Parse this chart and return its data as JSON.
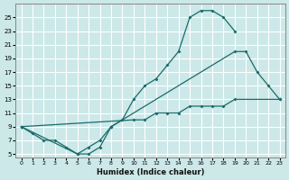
{
  "xlabel": "Humidex (Indice chaleur)",
  "bg_color": "#cce8e8",
  "line_color": "#1a6b6b",
  "grid_color": "#ffffff",
  "xlim": [
    -0.5,
    23.5
  ],
  "ylim": [
    4.5,
    27
  ],
  "xticks": [
    0,
    1,
    2,
    3,
    4,
    5,
    6,
    7,
    8,
    9,
    10,
    11,
    12,
    13,
    14,
    15,
    16,
    17,
    18,
    19,
    20,
    21,
    22,
    23
  ],
  "yticks": [
    5,
    7,
    9,
    11,
    13,
    15,
    17,
    19,
    21,
    23,
    25
  ],
  "line1_x": [
    0,
    1,
    2,
    3,
    4,
    5,
    6,
    7,
    8,
    9,
    10,
    11,
    12,
    13,
    14,
    15,
    16,
    17,
    18,
    19
  ],
  "line1_y": [
    9,
    8,
    7,
    7,
    6,
    5,
    5,
    6,
    9,
    10,
    13,
    15,
    16,
    18,
    20,
    25,
    26,
    26,
    25,
    23
  ],
  "line2_x": [
    0,
    5,
    6,
    7,
    8,
    19,
    20,
    21,
    22,
    23
  ],
  "line2_y": [
    9,
    5,
    6,
    7,
    9,
    20,
    20,
    17,
    15,
    13
  ],
  "line3_x": [
    0,
    10,
    11,
    12,
    13,
    14,
    15,
    16,
    17,
    18,
    19,
    23
  ],
  "line3_y": [
    9,
    10,
    10,
    11,
    11,
    11,
    12,
    12,
    12,
    12,
    13,
    13
  ]
}
